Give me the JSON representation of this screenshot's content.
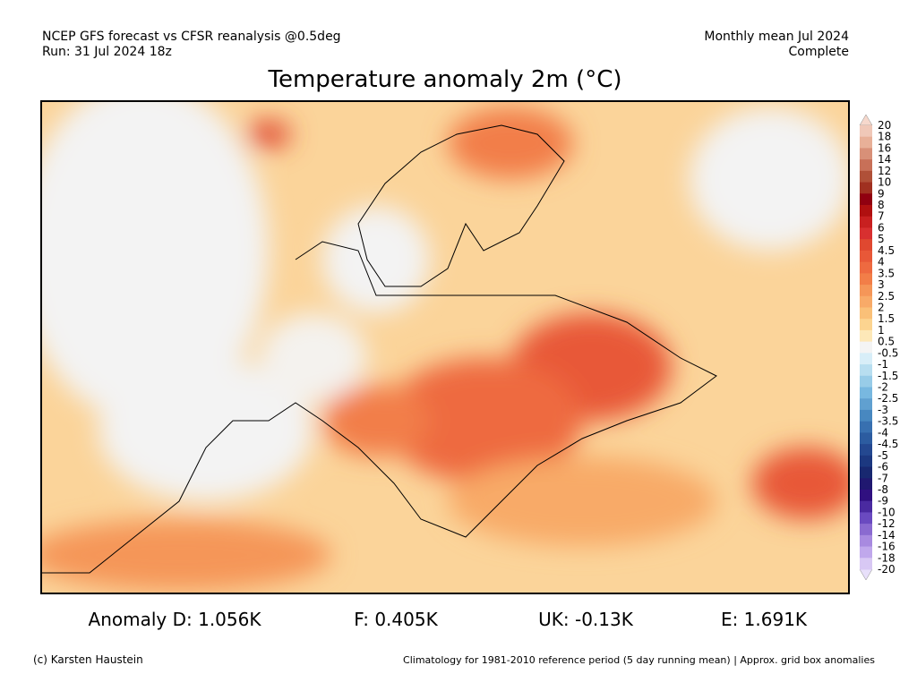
{
  "header": {
    "left": [
      "NCEP GFS forecast vs CFSR reanalysis @0.5deg",
      "Run: 31 Jul 2024 18z"
    ],
    "right": [
      "Monthly mean Jul 2024",
      "Complete"
    ]
  },
  "title": "Temperature anomaly 2m (°C)",
  "colorbar": {
    "labels": [
      "20",
      "18",
      "16",
      "14",
      "12",
      "10",
      "9",
      "8",
      "7",
      "6",
      "5",
      "4.5",
      "4",
      "3.5",
      "3",
      "2.5",
      "2",
      "1.5",
      "1",
      "0.5",
      "-0.5",
      "-1",
      "-1.5",
      "-2",
      "-2.5",
      "-3",
      "-3.5",
      "-4",
      "-4.5",
      "-5",
      "-6",
      "-7",
      "-8",
      "-9",
      "-10",
      "-12",
      "-14",
      "-16",
      "-18",
      "-20"
    ],
    "colors": [
      "#f0c8b8",
      "#e8b098",
      "#d89078",
      "#c87058",
      "#b05038",
      "#a03020",
      "#900010",
      "#b01010",
      "#c82020",
      "#d83030",
      "#e04830",
      "#e85838",
      "#ee6a40",
      "#f27e48",
      "#f59658",
      "#f8aa68",
      "#fac078",
      "#fcd490",
      "#fde8b8",
      "#f4f4f4",
      "#d8eef8",
      "#b8def0",
      "#98cce8",
      "#78b8e0",
      "#60a0d0",
      "#4888c0",
      "#3870b0",
      "#2c5ca0",
      "#244890",
      "#1c3880",
      "#182870",
      "#201870",
      "#301080",
      "#4a2aa0",
      "#6a4ac0",
      "#8a6ad0",
      "#a88ae0",
      "#c0a8ec",
      "#d8c8f4"
    ]
  },
  "stats": [
    "Anomaly D: 1.056K",
    "F: 0.405K",
    "UK: -0.13K",
    "E: 1.691K"
  ],
  "footer": {
    "left": "(c) Karsten Haustein",
    "right": "Climatology for 1981-2010 reference period (5 day running mean) | Approx. grid box anomalies"
  }
}
